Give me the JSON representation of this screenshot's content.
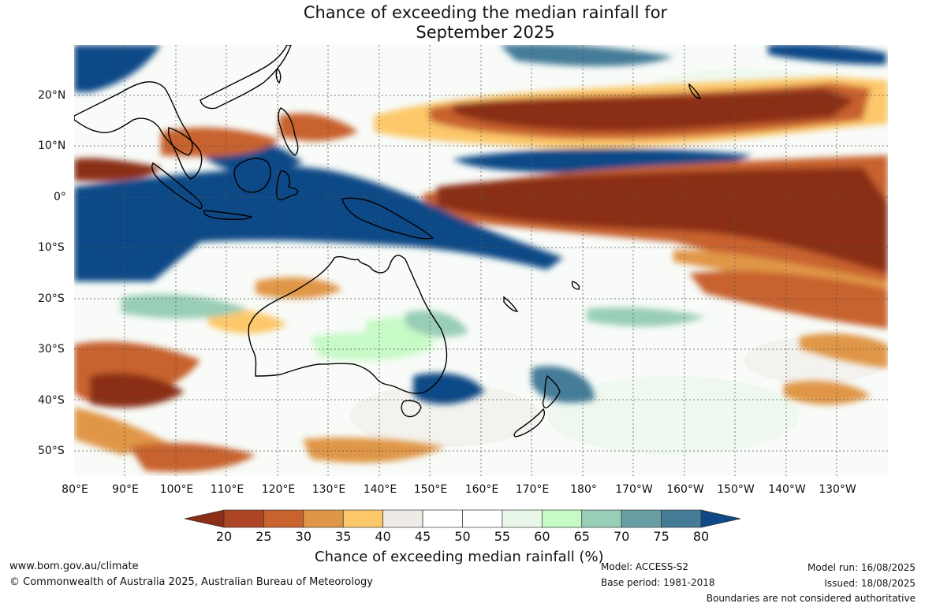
{
  "title": {
    "line1": "Chance of exceeding the median rainfall for",
    "line2": "September 2025"
  },
  "map": {
    "longitude_labels": [
      "80°E",
      "90°E",
      "100°E",
      "110°E",
      "120°E",
      "130°E",
      "140°E",
      "150°E",
      "160°E",
      "170°E",
      "180°",
      "170°W",
      "160°W",
      "150°W",
      "140°W",
      "130°W"
    ],
    "latitude_labels": [
      "20°N",
      "10°N",
      "0°",
      "10°S",
      "20°S",
      "30°S",
      "40°S",
      "50°S"
    ],
    "longitude_range": [
      80,
      240
    ],
    "latitude_range": [
      -55,
      30
    ]
  },
  "colorbar": {
    "ticks": [
      "20",
      "25",
      "30",
      "35",
      "40",
      "45",
      "50",
      "55",
      "60",
      "65",
      "70",
      "75",
      "80"
    ],
    "colors": [
      "#8b2d17",
      "#ad4424",
      "#c8622f",
      "#e09647",
      "#fcc86a",
      "#eeebe6",
      "#ffffff",
      "#ffffff",
      "#e9f7e9",
      "#c6fac6",
      "#98cdb6",
      "#699fa4",
      "#447c98",
      "#0e4886"
    ],
    "title": "Chance of exceeding median rainfall (%)"
  },
  "footer": {
    "website": "www.bom.gov.au/climate",
    "copyright": "© Commonwealth of Australia 2025, Australian Bureau of Meteorology",
    "model": "Model: ACCESS-S2",
    "base_period": "Base period: 1981-2018",
    "model_run": "Model run: 16/08/2025",
    "issued": "Issued: 18/08/2025",
    "disclaimer": "Boundaries are not considered authoritative"
  }
}
